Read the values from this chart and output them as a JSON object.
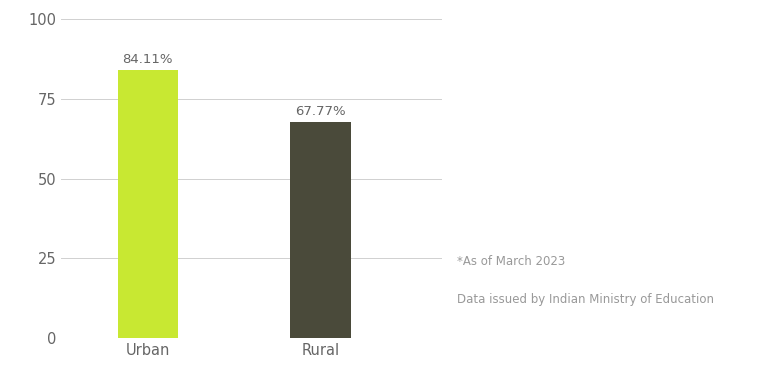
{
  "categories": [
    "Urban",
    "Rural"
  ],
  "values": [
    84.11,
    67.77
  ],
  "bar_colors": [
    "#c8e832",
    "#4a4a3a"
  ],
  "bar_labels": [
    "84.11%",
    "67.77%"
  ],
  "ylim": [
    0,
    100
  ],
  "yticks": [
    0,
    25,
    50,
    75,
    100
  ],
  "annotation_line1": "*As of March 2023",
  "annotation_line2": "Data issued by Indian Ministry of Education",
  "annotation_fontsize": 8.5,
  "annotation_color": "#999999",
  "tick_label_color": "#666666",
  "background_color": "#ffffff",
  "bar_width": 0.35,
  "label_fontsize": 9.5,
  "tick_fontsize": 10.5
}
